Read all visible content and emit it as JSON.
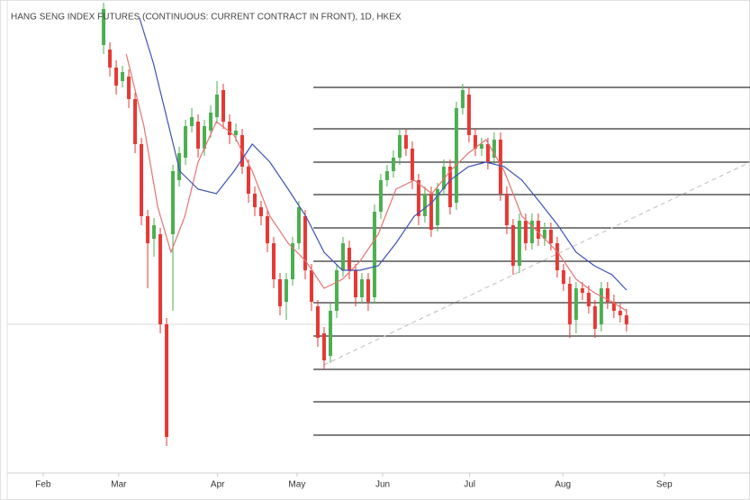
{
  "chart_data": {
    "type": "candlestick",
    "title": "HANG SENG INDEX FUTURES (CONTINUOUS: CURRENT CONTRACT IN FRONT), 1D, HKEX",
    "x": [
      0,
      1,
      2,
      3,
      4,
      5,
      6,
      7,
      8,
      9,
      10,
      11,
      12,
      13,
      14,
      15,
      16,
      17,
      18,
      19,
      20,
      21,
      22,
      23,
      24,
      25,
      26,
      27,
      28,
      29,
      30,
      31,
      32,
      33,
      34,
      35,
      36,
      37,
      38,
      39,
      40,
      41,
      42,
      43,
      44,
      45,
      46,
      47,
      48,
      49,
      50,
      51,
      52,
      53,
      54,
      55,
      56,
      57,
      58,
      59,
      60,
      61,
      62,
      63,
      64,
      65,
      66,
      67,
      68,
      69,
      70,
      71,
      72,
      73,
      74,
      75,
      76,
      77,
      78,
      79,
      80,
      81,
      82,
      83
    ],
    "open": [
      475,
      470,
      450,
      435,
      440,
      415,
      365,
      285,
      260,
      265,
      165,
      265,
      325,
      350,
      385,
      390,
      360,
      380,
      395,
      425,
      390,
      375,
      375,
      340,
      310,
      295,
      285,
      255,
      215,
      190,
      215,
      255,
      285,
      225,
      185,
      155,
      130,
      180,
      225,
      250,
      225,
      195,
      215,
      195,
      290,
      325,
      335,
      350,
      375,
      360,
      325,
      285,
      310,
      275,
      315,
      340,
      300,
      405,
      420,
      375,
      360,
      365,
      350,
      370,
      310,
      275,
      230,
      280,
      255,
      280,
      260,
      270,
      255,
      225,
      210,
      170,
      205,
      200,
      185,
      165,
      205,
      190,
      180,
      175
    ],
    "high": [
      522,
      478,
      458,
      452,
      448,
      422,
      372,
      292,
      283,
      272,
      172,
      342,
      362,
      392,
      405,
      398,
      392,
      408,
      435,
      432,
      398,
      388,
      382,
      348,
      318,
      302,
      292,
      262,
      222,
      222,
      262,
      302,
      292,
      232,
      192,
      162,
      188,
      232,
      262,
      258,
      232,
      222,
      222,
      298,
      332,
      342,
      358,
      382,
      382,
      368,
      332,
      318,
      318,
      322,
      348,
      348,
      412,
      432,
      428,
      382,
      372,
      372,
      378,
      378,
      318,
      282,
      288,
      288,
      288,
      288,
      278,
      278,
      262,
      232,
      218,
      212,
      212,
      208,
      192,
      212,
      212,
      198,
      188,
      182
    ],
    "low": [
      465,
      440,
      420,
      428,
      405,
      355,
      275,
      205,
      240,
      155,
      30,
      180,
      318,
      342,
      378,
      350,
      352,
      372,
      388,
      382,
      365,
      368,
      332,
      300,
      285,
      275,
      245,
      205,
      175,
      170,
      208,
      248,
      215,
      180,
      140,
      115,
      122,
      172,
      218,
      215,
      185,
      188,
      180,
      188,
      282,
      318,
      328,
      342,
      352,
      315,
      275,
      278,
      262,
      268,
      308,
      287,
      292,
      398,
      367,
      352,
      352,
      337,
      342,
      302,
      265,
      220,
      222,
      247,
      248,
      252,
      252,
      247,
      217,
      202,
      150,
      155,
      192,
      177,
      150,
      157,
      182,
      172,
      167,
      157
    ],
    "close": [
      515,
      450,
      430,
      445,
      415,
      365,
      285,
      255,
      275,
      165,
      40,
      335,
      355,
      385,
      395,
      360,
      385,
      400,
      420,
      390,
      375,
      380,
      340,
      310,
      295,
      285,
      255,
      215,
      185,
      215,
      255,
      295,
      225,
      190,
      150,
      125,
      180,
      225,
      255,
      225,
      195,
      215,
      190,
      290,
      325,
      335,
      350,
      375,
      360,
      325,
      285,
      310,
      270,
      315,
      340,
      295,
      405,
      425,
      375,
      360,
      365,
      345,
      370,
      310,
      275,
      230,
      280,
      255,
      280,
      260,
      270,
      255,
      225,
      210,
      165,
      205,
      200,
      185,
      160,
      205,
      190,
      180,
      175,
      165
    ],
    "up_color": "#4caf50",
    "down_color": "#e53935",
    "series": [
      {
        "color": "#e57373",
        "x": [
          3.6,
          6.4,
          8.6,
          10.7,
          12.9,
          15,
          17.9,
          20.7,
          23.6,
          26.4,
          29.3,
          32.1,
          35,
          37.9,
          40.7,
          43.6,
          46.4,
          49.3,
          52.1,
          55,
          57.9,
          60.7,
          63.6,
          66.4,
          69.3,
          72.1,
          75,
          77.9,
          80.7,
          83
        ],
        "values": [
          465,
          385,
          295,
          245,
          285,
          345,
          390,
          375,
          335,
          285,
          255,
          235,
          205,
          215,
          235,
          265,
          315,
          325,
          310,
          335,
          355,
          370,
          335,
          285,
          265,
          245,
          215,
          200,
          190,
          180
        ]
      },
      {
        "color": "#3f51b5",
        "x": [
          5.7,
          7.9,
          10,
          12.1,
          15,
          17.9,
          20.7,
          23.6,
          26.4,
          29.3,
          32.1,
          35,
          37.9,
          40.7,
          43.6,
          46.4,
          49.3,
          52.1,
          55,
          57.9,
          60.7,
          63.6,
          66.4,
          69.3,
          72.1,
          75,
          77.9,
          80.7,
          83
        ],
        "values": [
          505,
          455,
          395,
          335,
          315,
          310,
          335,
          365,
          345,
          315,
          285,
          245,
          225,
          225,
          230,
          255,
          285,
          300,
          325,
          340,
          345,
          340,
          325,
          300,
          275,
          245,
          230,
          220,
          203
        ]
      }
    ],
    "levels": [
      428,
      382,
      345,
      309,
      272,
      235,
      189,
      152,
      115,
      79,
      42
    ],
    "levels_start": 33.3,
    "levels_color": "#000000",
    "trendline": {
      "x": [
        35,
        102.6
      ],
      "values": [
        120,
        345
      ],
      "color": "#bdbdbd"
    },
    "price_line": 165,
    "xlim": [
      -15.3,
      102.6
    ],
    "ylim": [
      0,
      525
    ],
    "xticks": [
      {
        "value": -9.6,
        "label": "Feb"
      },
      {
        "value": 2.4,
        "label": "Mar"
      },
      {
        "value": 18.1,
        "label": "Apr"
      },
      {
        "value": 30.7,
        "label": "May"
      },
      {
        "value": 44.3,
        "label": "Jun"
      },
      {
        "value": 58.1,
        "label": "Jul"
      },
      {
        "value": 72.9,
        "label": "Aug"
      },
      {
        "value": 89,
        "label": "Sep"
      }
    ]
  }
}
